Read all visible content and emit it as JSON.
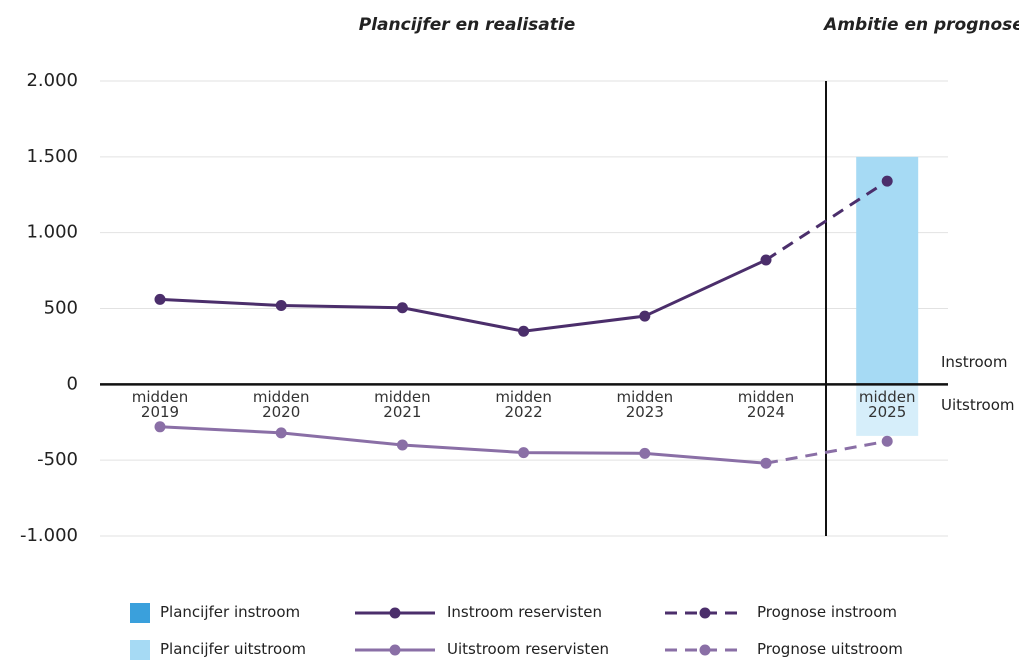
{
  "chart_data": {
    "type": "line",
    "grid": true,
    "headings": [
      "Plancijfer en realisatie",
      "Ambitie en prognose"
    ],
    "side_labels": [
      "Instroom",
      "Uitstroom"
    ],
    "categories": [
      "midden 2019",
      "midden 2020",
      "midden 2021",
      "midden 2022",
      "midden 2023",
      "midden 2024",
      "midden 2025"
    ],
    "ylim": [
      -1000,
      2000
    ],
    "yticks": [
      {
        "value": -1000,
        "label": "-1.000"
      },
      -500,
      0,
      500,
      {
        "value": 1000,
        "label": "1.000"
      },
      {
        "value": 1500,
        "label": "1.500"
      },
      {
        "value": 2000,
        "label": "2.000"
      }
    ],
    "series": [
      {
        "name": "Plancijfer instroom",
        "kind": "bar",
        "color": "#a6daf4",
        "legend_color": "#3aa0dc",
        "values": [
          null,
          null,
          null,
          null,
          null,
          null,
          1500
        ]
      },
      {
        "name": "Plancijfer uitstroom",
        "kind": "bar",
        "color": "#d6eefa",
        "legend_color": "#a6daf4",
        "values": [
          null,
          null,
          null,
          null,
          null,
          null,
          -340
        ]
      },
      {
        "name": "Instroom reservisten",
        "kind": "line",
        "color": "#4b2e6b",
        "values": [
          560,
          520,
          505,
          350,
          450,
          820,
          null
        ]
      },
      {
        "name": "Uitstroom reservisten",
        "kind": "line",
        "color": "#8a6fa6",
        "values": [
          -280,
          -320,
          -400,
          -450,
          -455,
          -520,
          null
        ]
      },
      {
        "name": "Prognose instroom",
        "kind": "dashed",
        "color": "#4b2e6b",
        "values": [
          null,
          null,
          null,
          null,
          null,
          null,
          1340
        ]
      },
      {
        "name": "Prognose uitstroom",
        "kind": "dashed",
        "color": "#8a6fa6",
        "values": [
          null,
          null,
          null,
          null,
          null,
          null,
          -375
        ]
      }
    ]
  }
}
